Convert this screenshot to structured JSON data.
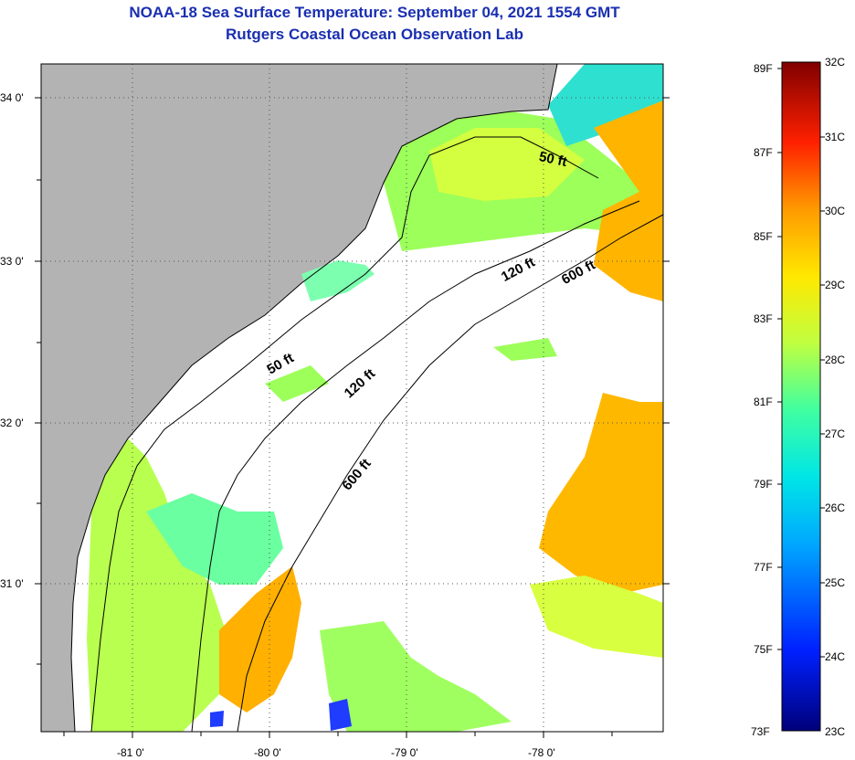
{
  "title": {
    "line1": "NOAA-18 Sea Surface Temperature:  September 04, 2021 1554 GMT",
    "line2": "Rutgers Coastal Ocean Observation Lab"
  },
  "map": {
    "lon_ticks": [
      "-81 0'",
      "-80 0'",
      "-79 0'",
      "-78 0'"
    ],
    "lat_ticks": [
      "34 0'",
      "33 0'",
      "32 0'",
      "31 0'"
    ],
    "contours": [
      {
        "label": "50 ft"
      },
      {
        "label": "120 ft"
      },
      {
        "label": "600 ft"
      },
      {
        "label": "50 ft"
      },
      {
        "label": "120 ft"
      },
      {
        "label": "600 ft"
      }
    ]
  },
  "colorbar": {
    "fahrenheit": [
      "89F",
      "87F",
      "85F",
      "83F",
      "81F",
      "79F",
      "77F",
      "75F",
      "73F"
    ],
    "celsius": [
      "32C",
      "31C",
      "30C",
      "29C",
      "28C",
      "27C",
      "26C",
      "25C",
      "24C",
      "23C"
    ]
  },
  "colors": {
    "land": "#b3b3b3",
    "title": "#1a2fb0",
    "cloud": "#ffffff"
  }
}
